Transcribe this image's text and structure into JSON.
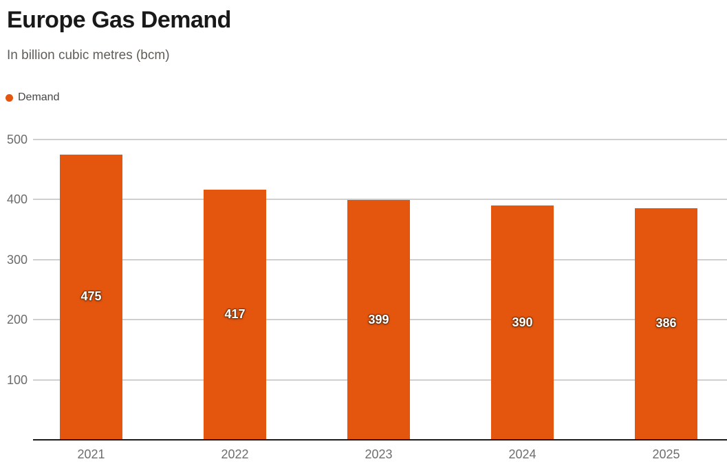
{
  "header": {
    "title": "Europe Gas Demand",
    "subtitle": "In billion cubic metres (bcm)"
  },
  "legend": {
    "label": "Demand"
  },
  "colors": {
    "bar": "#e4550e",
    "grid": "#cfcfcf",
    "axis": "#1a1a1a",
    "tick_label": "#6b6b6b",
    "value_label": "#ffffff"
  },
  "chart_data": {
    "type": "bar",
    "title": "Europe Gas Demand",
    "subtitle": "In billion cubic metres (bcm)",
    "categories": [
      "2021",
      "2022",
      "2023",
      "2024",
      "2025"
    ],
    "series": [
      {
        "name": "Demand",
        "values": [
          475,
          417,
          399,
          390,
          386
        ]
      }
    ],
    "value_labels": [
      "475",
      "417",
      "399",
      "390",
      "386"
    ],
    "xlabel": "",
    "ylabel": "",
    "ylim": [
      0,
      500
    ],
    "yticks": [
      100,
      200,
      300,
      400,
      500
    ],
    "grid": true,
    "legend_position": "top-left",
    "bar_color": "#e4550e"
  }
}
